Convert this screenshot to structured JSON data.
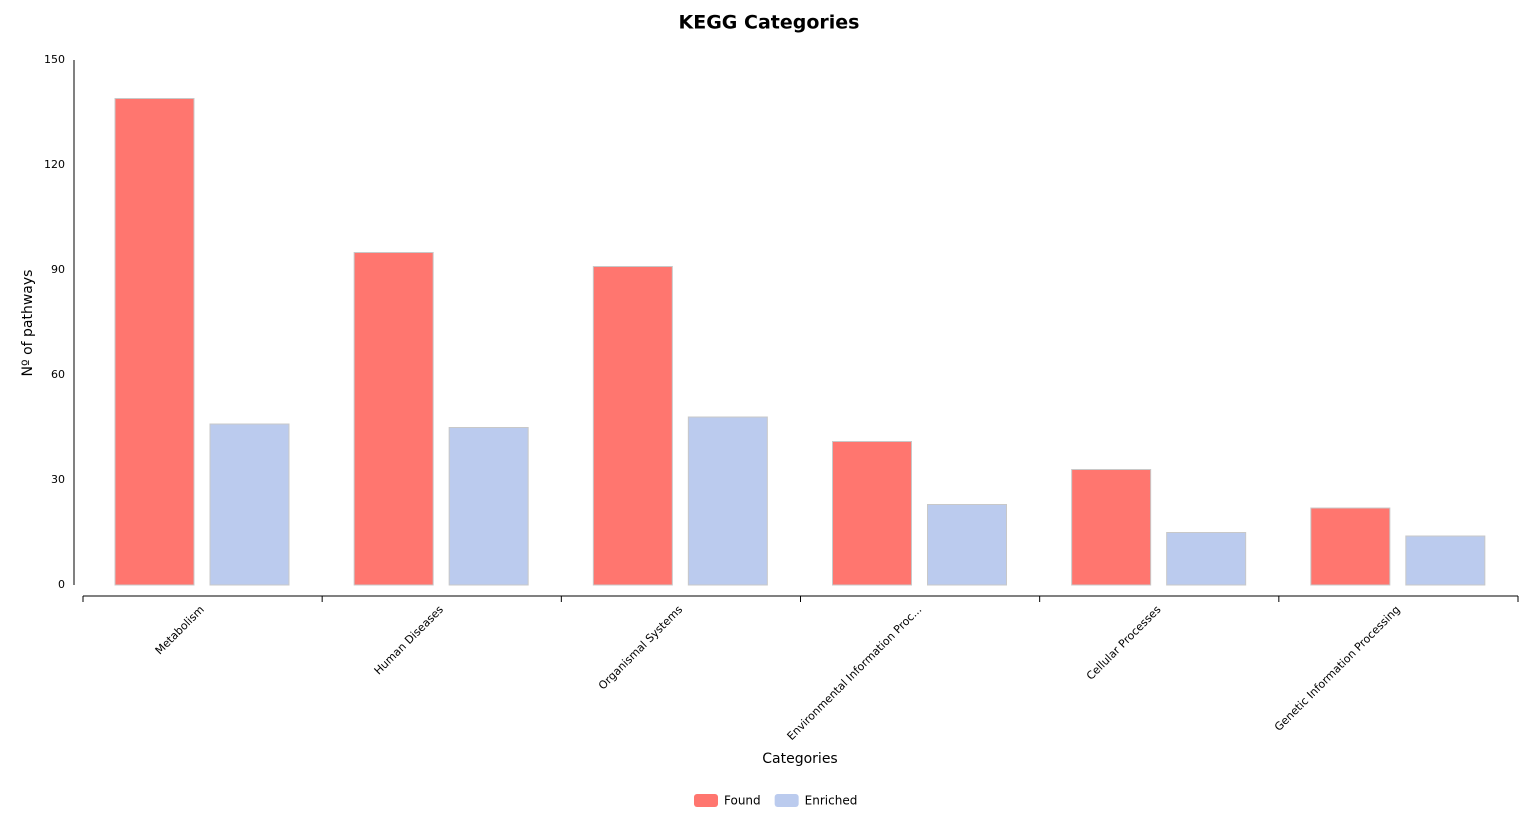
{
  "chart_data": {
    "type": "bar",
    "title": "KEGG Categories",
    "x_label": "Categories",
    "y_label": "Nº of pathways",
    "categories": [
      "Metabolism",
      "Human Diseases",
      "Organismal Systems",
      "Environmental Information Proc...",
      "Cellular Processes",
      "Genetic Information Processing"
    ],
    "series": [
      {
        "name": "Found",
        "color": "#ff766f",
        "values": [
          139,
          95,
          91,
          41,
          33,
          22
        ]
      },
      {
        "name": "Enriched",
        "color": "#bbcbee",
        "values": [
          46,
          45,
          48,
          23,
          15,
          14
        ]
      }
    ],
    "ylim": [
      0,
      150
    ],
    "yticks": [
      0,
      30,
      60,
      90,
      120,
      150
    ],
    "grid": false,
    "legend": "bottom"
  }
}
